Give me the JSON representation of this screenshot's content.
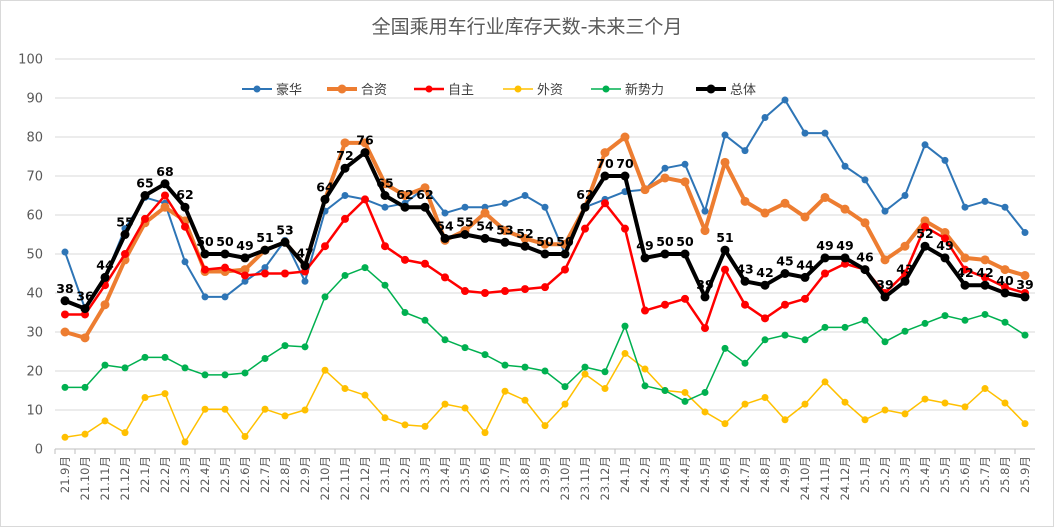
{
  "chart_data": {
    "type": "line",
    "title": "全国乘用车行业库存天数-未来三个月",
    "xlabel": "",
    "ylabel": "",
    "ylim": [
      0,
      100
    ],
    "yticks": [
      0,
      10,
      20,
      30,
      40,
      50,
      60,
      70,
      80,
      90,
      100
    ],
    "grid": true,
    "legend_position": "top",
    "categories": [
      "21.9月",
      "21.10月",
      "21.11月",
      "21.12月",
      "22.1月",
      "22.2月",
      "22.3月",
      "22.4月",
      "22.5月",
      "22.6月",
      "22.7月",
      "22.8月",
      "22.9月",
      "22.10月",
      "22.11月",
      "22.12月",
      "23.1月",
      "23.2月",
      "23.3月",
      "23.4月",
      "23.5月",
      "23.6月",
      "23.7月",
      "23.8月",
      "23.9月",
      "23.10月",
      "23.11月",
      "23.12月",
      "24.1月",
      "24.2月",
      "24.3月",
      "24.4月",
      "24.5月",
      "24.6月",
      "24.7月",
      "24.8月",
      "24.9月",
      "24.10月",
      "24.11月",
      "24.12月",
      "25.1月",
      "25.2月",
      "25.3月",
      "25.4月",
      "25.5月",
      "25.6月",
      "25.7月",
      "25.8月",
      "25.9月"
    ],
    "series": [
      {
        "name": "豪华",
        "color": "#2e75b6",
        "width": 2,
        "values": [
          50.5,
          36,
          44,
          56.5,
          64.5,
          63,
          48,
          39,
          39,
          43,
          46.5,
          53.5,
          43,
          61,
          65,
          64,
          62,
          63,
          67,
          60.5,
          62,
          62,
          63,
          65,
          62,
          50,
          62,
          64,
          66,
          66.5,
          72,
          73,
          61,
          80.5,
          76.5,
          85,
          89.5,
          81,
          81,
          72.5,
          69,
          61,
          65,
          78,
          74,
          62,
          63.5,
          62,
          55.5
        ]
      },
      {
        "name": "合资",
        "color": "#ed7d31",
        "width": 4,
        "values": [
          30,
          28.5,
          37,
          48.5,
          58,
          62,
          58.5,
          45.5,
          45.5,
          46,
          51,
          53,
          47,
          64,
          78.5,
          78.5,
          68,
          65,
          67,
          53.5,
          56,
          60.5,
          56,
          54,
          52.5,
          52.5,
          62,
          76,
          80,
          66.5,
          69.5,
          68.5,
          56,
          73.5,
          63.5,
          60.5,
          63,
          59.5,
          64.5,
          61.5,
          58,
          48.5,
          52,
          58.5,
          55.5,
          49,
          48.5,
          46,
          44.5
        ]
      },
      {
        "name": "自主",
        "color": "#ff0000",
        "width": 2.5,
        "values": [
          34.5,
          34.5,
          42,
          50,
          59,
          65,
          57,
          46,
          46.5,
          44.5,
          45,
          45,
          45.5,
          52,
          59,
          64,
          52,
          48.5,
          47.5,
          44,
          40.5,
          40,
          40.5,
          41,
          41.5,
          46,
          56.5,
          63,
          56.5,
          35.5,
          37,
          38.5,
          31,
          46,
          37,
          33.5,
          37,
          38.5,
          45,
          47.5,
          46,
          40,
          45,
          57,
          54,
          46,
          44,
          41.5,
          40
        ]
      },
      {
        "name": "外资",
        "color": "#ffc000",
        "width": 1.5,
        "values": [
          3,
          3.8,
          7.2,
          4.2,
          13.2,
          14.2,
          1.8,
          10.2,
          10.2,
          3.2,
          10.2,
          8.5,
          10,
          20.2,
          15.5,
          13.8,
          8,
          6.2,
          5.8,
          11.5,
          10.5,
          4.2,
          14.8,
          12.5,
          6,
          11.5,
          19.2,
          15.5,
          24.5,
          20.5,
          15,
          14.5,
          9.5,
          6.5,
          11.5,
          13.2,
          7.5,
          11.5,
          17.2,
          12,
          7.5,
          10,
          9,
          12.8,
          11.8,
          10.8,
          15.5,
          11.8,
          6.5
        ]
      },
      {
        "name": "新势力",
        "color": "#00b050",
        "width": 1.5,
        "values": [
          15.8,
          15.8,
          21.5,
          20.8,
          23.5,
          23.5,
          20.8,
          19,
          19,
          19.5,
          23.2,
          26.5,
          26.2,
          39,
          44.5,
          46.5,
          42,
          35,
          33,
          28,
          26,
          24.2,
          21.5,
          21,
          20,
          16,
          21,
          19.8,
          31.5,
          16.2,
          15,
          12.2,
          14.5,
          25.8,
          22,
          28,
          29.2,
          28,
          31.2,
          31.2,
          33,
          27.5,
          30.2,
          32.2,
          34.2,
          33,
          34.5,
          32.5,
          29.2
        ]
      },
      {
        "name": "总体",
        "color": "#000000",
        "width": 4,
        "values": [
          38,
          36,
          44,
          55,
          65,
          68,
          62,
          50,
          50,
          49,
          51,
          53,
          47,
          64,
          72,
          76,
          65,
          62,
          62,
          54,
          55,
          54,
          53,
          52,
          50,
          50,
          62,
          70,
          70,
          49,
          50,
          50,
          39,
          51,
          43,
          42,
          45,
          44,
          49,
          49,
          46,
          39,
          43,
          52,
          49,
          42,
          42,
          40,
          39
        ]
      }
    ],
    "data_labels_series": "总体",
    "data_labels": [
      "38",
      "36",
      "44",
      "55",
      "65",
      "68",
      "62",
      "50",
      "50",
      "49",
      "51",
      "53",
      "47",
      "64",
      "72",
      "76",
      "65",
      "62",
      "62",
      "54",
      "55",
      "54",
      "53",
      "52",
      "50",
      "50",
      "62",
      "70",
      "70",
      "49",
      "50",
      "50",
      "39",
      "51",
      "43",
      "42",
      "45",
      "44",
      "49",
      "49",
      "46",
      "39",
      "43",
      "52",
      "49",
      "42",
      "42",
      "40",
      "39"
    ]
  }
}
